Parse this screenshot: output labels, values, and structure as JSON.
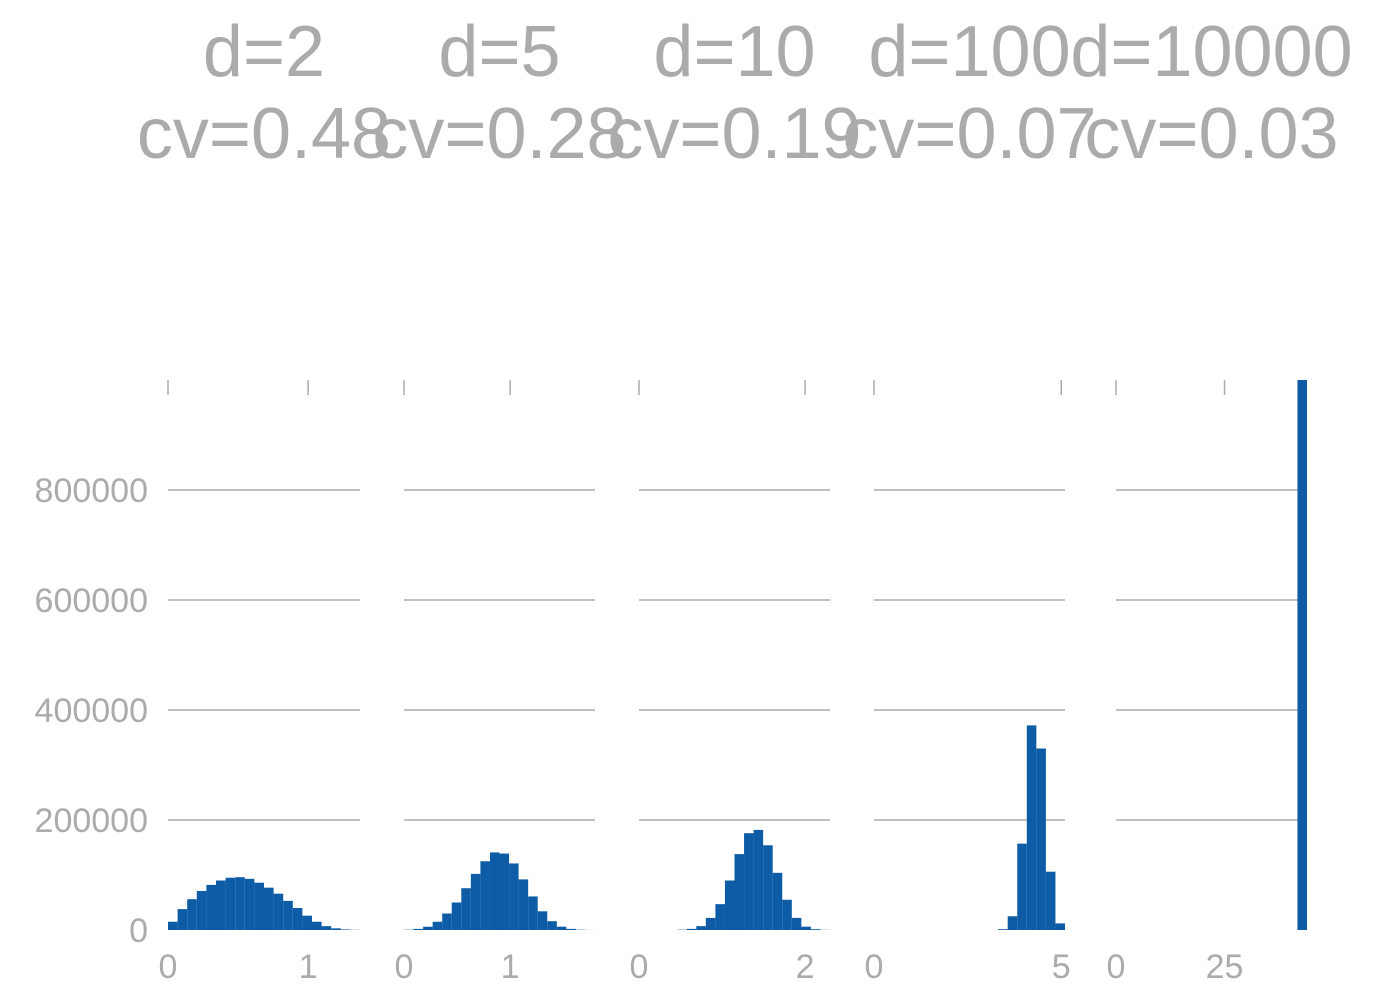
{
  "chart_data": [
    {
      "type": "bar",
      "title": "d=2",
      "subtitle": "cv=0.48",
      "xlim": [
        0,
        1.37
      ],
      "ylim": [
        0,
        1000000
      ],
      "xticks": [
        0,
        1
      ],
      "yticks": [
        0,
        200000,
        400000,
        600000,
        800000
      ],
      "bin_range": [
        0,
        1.37
      ],
      "values": [
        15000,
        38000,
        56000,
        71000,
        82000,
        90000,
        95000,
        96000,
        93000,
        86000,
        77000,
        66000,
        53000,
        40000,
        26000,
        15000,
        7000,
        3000,
        1000,
        300
      ]
    },
    {
      "type": "bar",
      "title": "d=5",
      "subtitle": "cv=0.28",
      "xlim": [
        0,
        1.8
      ],
      "ylim": [
        0,
        1000000
      ],
      "xticks": [
        0,
        1
      ],
      "yticks": [
        0,
        200000,
        400000,
        600000,
        800000
      ],
      "bin_range": [
        0,
        1.8
      ],
      "values": [
        500,
        2000,
        6000,
        15000,
        30000,
        50000,
        76000,
        102000,
        125000,
        141000,
        139000,
        121000,
        92000,
        61000,
        34000,
        16000,
        6000,
        2000,
        500,
        100
      ]
    },
    {
      "type": "bar",
      "title": "d=10",
      "subtitle": "cv=0.19",
      "xlim": [
        0,
        2.3
      ],
      "ylim": [
        0,
        1000000
      ],
      "xticks": [
        0,
        2
      ],
      "yticks": [
        0,
        200000,
        400000,
        600000,
        800000
      ],
      "bin_range": [
        0,
        2.3
      ],
      "values": [
        0,
        0,
        0,
        0,
        500,
        2000,
        7000,
        22000,
        47000,
        90000,
        138000,
        176000,
        182000,
        154000,
        104000,
        55000,
        22000,
        6000,
        1500,
        300
      ]
    },
    {
      "type": "bar",
      "title": "d=100",
      "subtitle": "cv=0.07",
      "xlim": [
        0,
        5.1
      ],
      "ylim": [
        0,
        1000000
      ],
      "xticks": [
        0,
        5
      ],
      "yticks": [
        0,
        200000,
        400000,
        600000,
        800000
      ],
      "bin_range": [
        0,
        5.1
      ],
      "values": [
        0,
        0,
        0,
        0,
        0,
        0,
        0,
        0,
        0,
        0,
        0,
        0,
        0,
        1500,
        25000,
        157000,
        372000,
        330000,
        106000,
        12000
      ]
    },
    {
      "type": "bar",
      "title": "d=10000",
      "subtitle": "cv=0.03",
      "xlim": [
        0,
        44
      ],
      "ylim": [
        0,
        1000000
      ],
      "xticks": [
        0,
        25
      ],
      "yticks": [
        0,
        200000,
        400000,
        600000,
        800000
      ],
      "bin_range": [
        0,
        44
      ],
      "values": [
        0,
        0,
        0,
        0,
        0,
        0,
        0,
        0,
        0,
        0,
        0,
        0,
        0,
        0,
        0,
        0,
        0,
        0,
        0,
        1000000
      ]
    }
  ],
  "style": {
    "bar_color": "#0d5ca5",
    "axis_color": "#ababab",
    "text_color": "#ababab"
  }
}
